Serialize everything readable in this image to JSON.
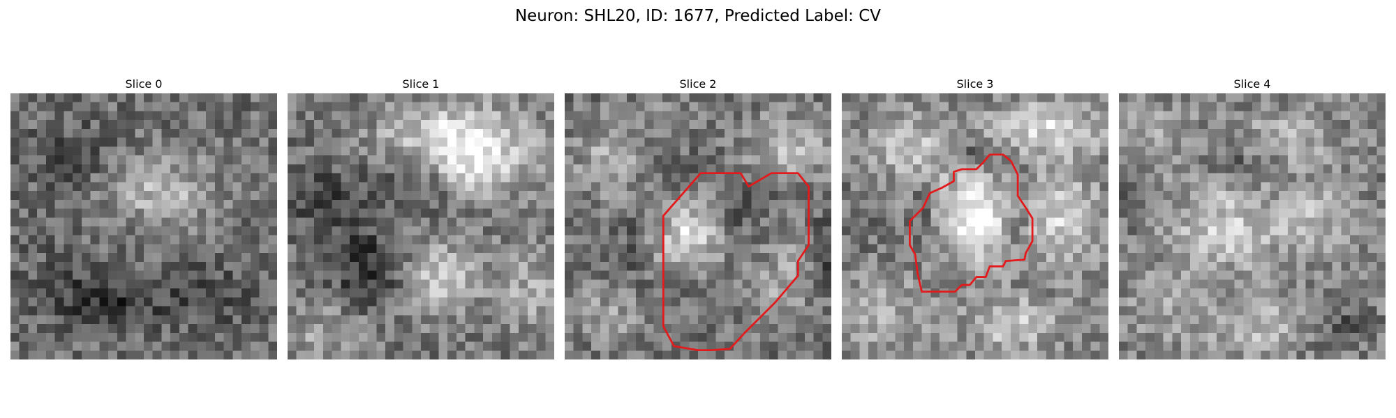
{
  "figure": {
    "title": "Neuron: SHL20, ID: 1677, Predicted Label: CV"
  },
  "panels": [
    {
      "title": "Slice 0",
      "outline": false
    },
    {
      "title": "Slice 1",
      "outline": false
    },
    {
      "title": "Slice 2",
      "outline": true
    },
    {
      "title": "Slice 3",
      "outline": true
    },
    {
      "title": "Slice 4",
      "outline": false
    }
  ],
  "colors": {
    "outline": "#e31a1c",
    "colormap": "grayscale"
  }
}
